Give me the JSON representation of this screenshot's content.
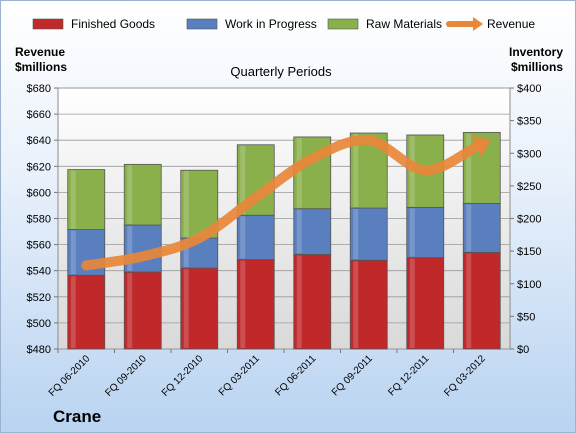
{
  "chart_data": {
    "type": "bar",
    "title": "Quarterly Periods",
    "company": "Crane",
    "left_axis_label": [
      "Revenue",
      "$millions"
    ],
    "right_axis_label": [
      "Inventory",
      "$millions"
    ],
    "categories": [
      "FQ 06-2010",
      "FQ 09-2010",
      "FQ 12-2010",
      "FQ 03-2011",
      "FQ 06-2011",
      "FQ 09-2011",
      "FQ 12-2011",
      "FQ 03-2012"
    ],
    "left_ticks": [
      "$480",
      "$500",
      "$520",
      "$540",
      "$560",
      "$580",
      "$600",
      "$620",
      "$640",
      "$660",
      "$680"
    ],
    "right_ticks": [
      "$0",
      "$50",
      "$100",
      "$150",
      "$200",
      "$250",
      "$300",
      "$350",
      "$400"
    ],
    "left_ylim": [
      480,
      680
    ],
    "right_ylim": [
      0,
      400
    ],
    "legend_position": "top",
    "grid": true,
    "series": [
      {
        "name": "Finished Goods",
        "axis": "right",
        "kind": "stacked-bar",
        "color": "#c0282a",
        "values": [
          113,
          118,
          124,
          137,
          145,
          136,
          140,
          148
        ]
      },
      {
        "name": "Work in Progress",
        "axis": "right",
        "kind": "stacked-bar",
        "color": "#5a7fbf",
        "values": [
          70,
          72,
          46,
          68,
          70,
          80,
          77,
          75
        ]
      },
      {
        "name": "Raw Materials",
        "axis": "right",
        "kind": "stacked-bar",
        "color": "#8ab04c",
        "values": [
          92,
          93,
          104,
          108,
          110,
          115,
          111,
          109
        ]
      },
      {
        "name": "Revenue",
        "axis": "left",
        "kind": "line",
        "color": "#e8873a",
        "values": [
          544,
          551,
          565,
          596,
          626,
          640,
          617,
          637
        ]
      }
    ]
  }
}
